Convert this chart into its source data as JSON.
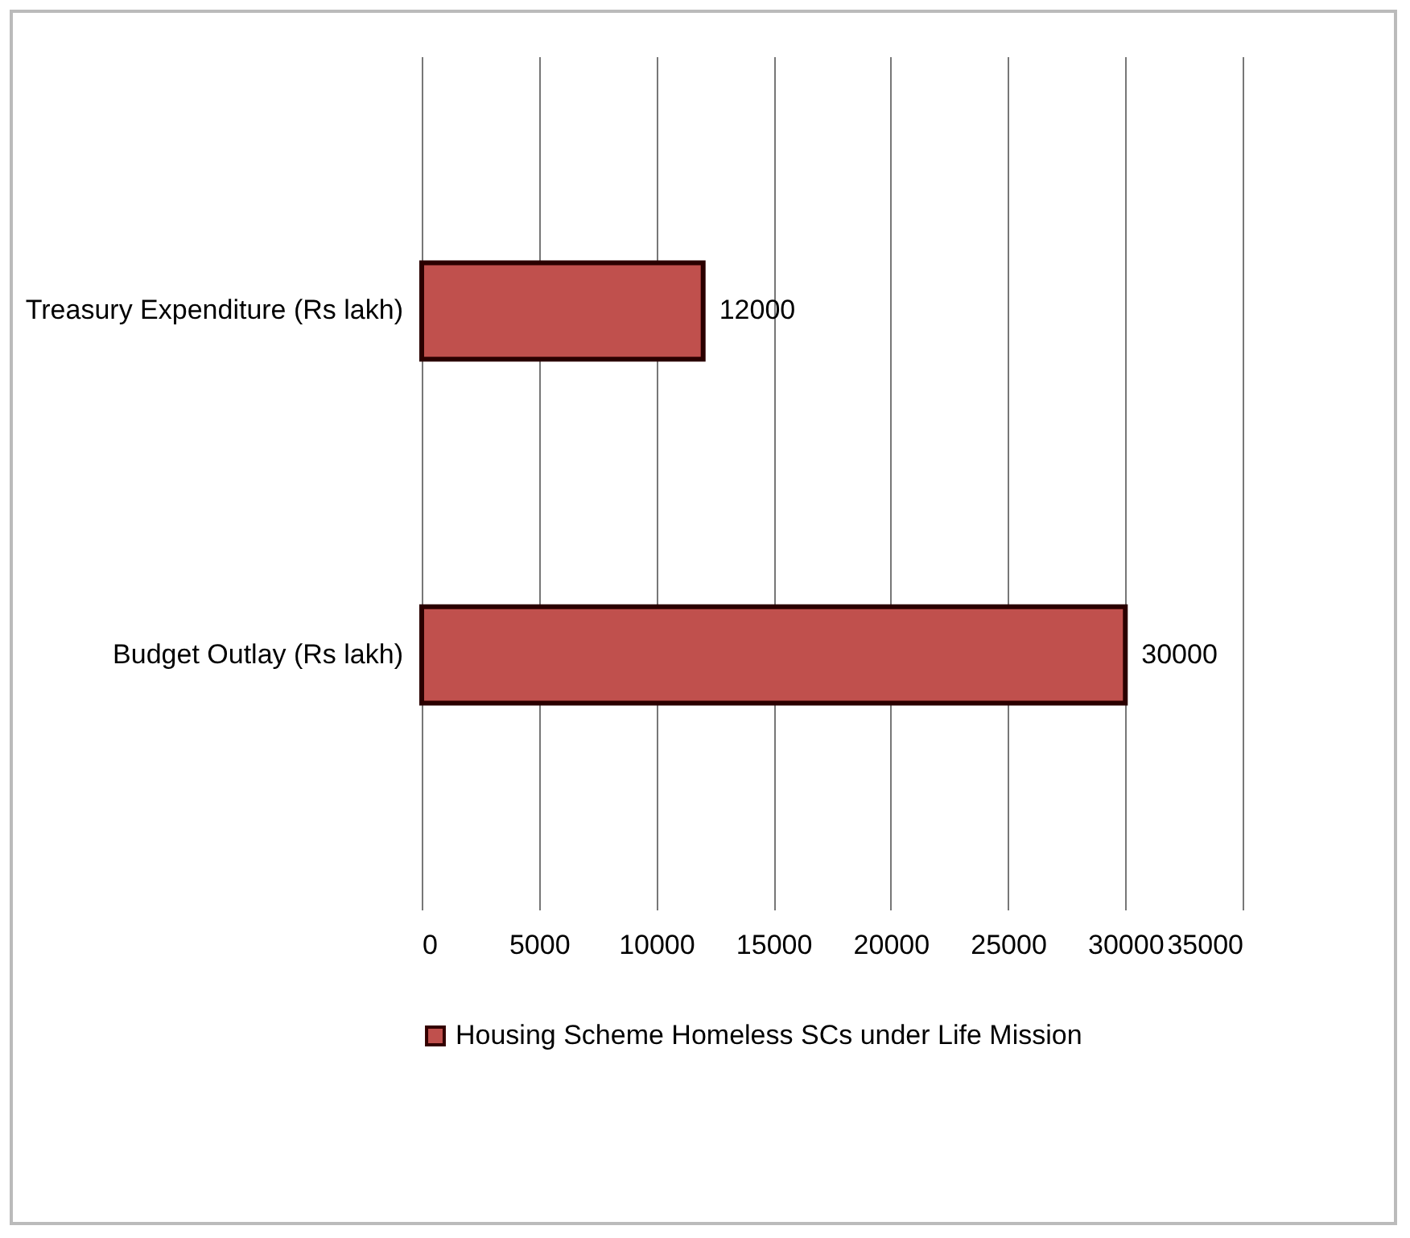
{
  "chart_data": {
    "type": "bar",
    "orientation": "horizontal",
    "categories": [
      "Treasury Expenditure (Rs lakh)",
      "Budget Outlay (Rs lakh)"
    ],
    "series": [
      {
        "name": "Housing Scheme Homeless SCs under Life Mission",
        "color": "#c0504d",
        "values": [
          12000,
          30000
        ]
      }
    ],
    "xlim": [
      0,
      35000
    ],
    "xticks": [
      0,
      5000,
      10000,
      15000,
      20000,
      25000,
      30000,
      35000
    ],
    "grid": "x",
    "data_labels": true,
    "legend": "bottom"
  }
}
